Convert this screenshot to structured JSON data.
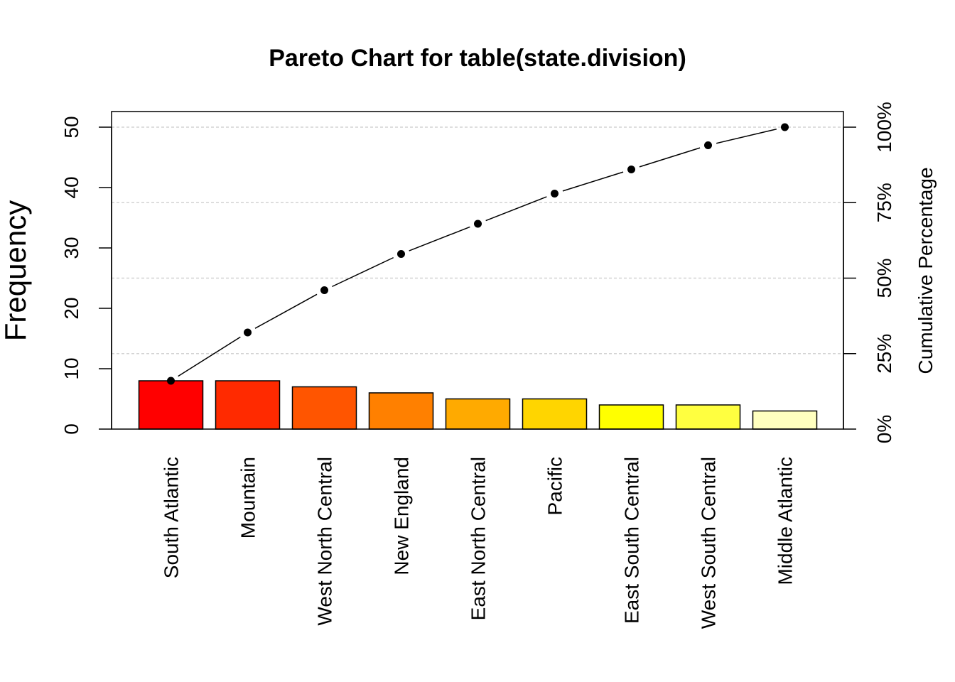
{
  "chart_data": {
    "type": "bar",
    "title": "Pareto Chart for table(state.division)",
    "ylabel": "Frequency",
    "ylabel_right": "Cumulative Percentage",
    "xlabel": "",
    "ylim": [
      0,
      52.5
    ],
    "y_ticks": [
      0,
      10,
      20,
      30,
      40,
      50
    ],
    "y_ticks_right": [
      "0%",
      "25%",
      "50%",
      "75%",
      "100%"
    ],
    "categories": [
      "South Atlantic",
      "Mountain",
      "West North Central",
      "New England",
      "East North Central",
      "Pacific",
      "East South Central",
      "West South Central",
      "Middle Atlantic"
    ],
    "values": [
      8,
      8,
      7,
      6,
      5,
      5,
      4,
      4,
      3
    ],
    "cumulative_percent": [
      16,
      32,
      46,
      58,
      68,
      78,
      86,
      94,
      100
    ],
    "bar_colors": [
      "#FF0000",
      "#FF2A00",
      "#FF5500",
      "#FF8000",
      "#FFAA00",
      "#FFD500",
      "#FFFF00",
      "#FFFF40",
      "#FFFFBF"
    ],
    "grid": true,
    "legend": "none"
  }
}
